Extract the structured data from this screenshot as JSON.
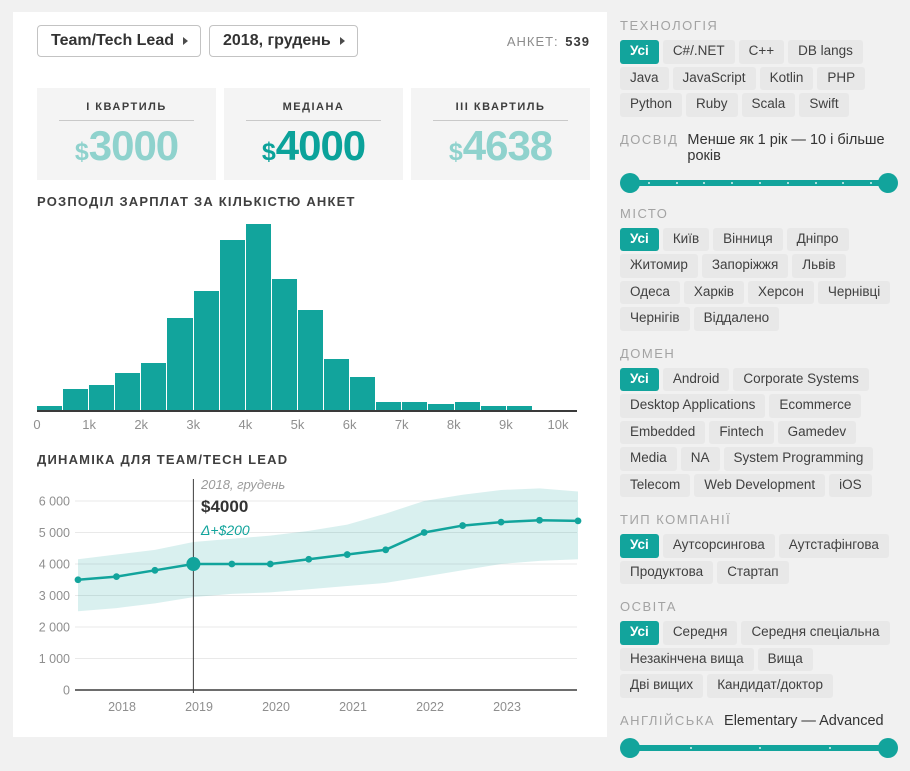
{
  "toolbar": {
    "category_dropdown": "Team/Tech Lead",
    "period_dropdown": "2018, грудень",
    "surveys_label": "АНКЕТ:",
    "surveys_count": "539"
  },
  "stats": {
    "currency": "$",
    "items": [
      {
        "label": "І КВАРТИЛЬ",
        "value": "3000"
      },
      {
        "label": "МЕДІАНА",
        "value": "4000"
      },
      {
        "label": "ІІІ КВАРТИЛЬ",
        "value": "4638"
      }
    ]
  },
  "chart_data": [
    {
      "type": "bar",
      "title": "РОЗПОДІЛ ЗАРПЛАТ ЗА КІЛЬКІСТЮ АНКЕТ",
      "x_range": [
        0,
        10000
      ],
      "bin_width": 500,
      "x_tick_labels": [
        "0",
        "1k",
        "2k",
        "3k",
        "4k",
        "5k",
        "6k",
        "7k",
        "8k",
        "9k",
        "10k"
      ],
      "values": [
        2,
        11,
        13,
        19,
        24,
        47,
        61,
        87,
        95,
        67,
        51,
        26,
        17,
        4,
        4,
        3,
        4,
        2,
        2,
        0
      ],
      "grid": false,
      "bar_color": "#12a49c"
    },
    {
      "type": "line",
      "title": "ДИНАМІКА ДЛЯ TEAM/TECH LEAD",
      "x_tick_labels": [
        "2018",
        "2019",
        "2020",
        "2021",
        "2022",
        "2023"
      ],
      "ylim": [
        0,
        6500
      ],
      "y_tick_labels": [
        "0",
        "1 000",
        "2 000",
        "3 000",
        "4 000",
        "5 000",
        "6 000"
      ],
      "grid": true,
      "legend_position": "none",
      "series": [
        {
          "name": "median",
          "values": [
            3500,
            3600,
            3800,
            4000,
            4000,
            4000,
            4150,
            4300,
            4450,
            5000,
            5220,
            5330,
            5390,
            5370
          ]
        }
      ],
      "band_upper": [
        4150,
        4300,
        4450,
        4700,
        4800,
        4900,
        5050,
        5250,
        5600,
        6000,
        6200,
        6350,
        6400,
        6300
      ],
      "band_lower": [
        2500,
        2600,
        2750,
        2950,
        3050,
        3100,
        3200,
        3300,
        3400,
        3600,
        3800,
        4000,
        4100,
        4150
      ],
      "highlight_index": 3,
      "tooltip": {
        "period": "2018, грудень",
        "value": "$4000",
        "delta": "Δ+$200"
      }
    }
  ],
  "sidebar": {
    "sections": [
      {
        "id": "technology",
        "title": "ТЕХНОЛОГІЯ",
        "type": "chips",
        "selected": "Усі",
        "chips": [
          "Усі",
          "C#/.NET",
          "C++",
          "DB langs",
          "Java",
          "JavaScript",
          "Kotlin",
          "PHP",
          "Python",
          "Ruby",
          "Scala",
          "Swift"
        ]
      },
      {
        "id": "experience",
        "title": "ДОСВІД",
        "type": "slider",
        "range_label": "Менше як 1 рік — 10 і більше років",
        "ticks": 9
      },
      {
        "id": "city",
        "title": "МІСТО",
        "type": "chips",
        "selected": "Усі",
        "chips": [
          "Усі",
          "Київ",
          "Вінниця",
          "Дніпро",
          "Житомир",
          "Запоріжжя",
          "Львів",
          "Одеса",
          "Харків",
          "Херсон",
          "Чернівці",
          "Чернігів",
          "Віддалено"
        ]
      },
      {
        "id": "domain",
        "title": "ДОМЕН",
        "type": "chips",
        "selected": "Усі",
        "chips": [
          "Усі",
          "Android",
          "Corporate Systems",
          "Desktop Applications",
          "Ecommerce",
          "Embedded",
          "Fintech",
          "Gamedev",
          "Media",
          "NA",
          "System Programming",
          "Telecom",
          "Web Development",
          "iOS"
        ]
      },
      {
        "id": "company-type",
        "title": "ТИП КОМПАНІЇ",
        "type": "chips",
        "selected": "Усі",
        "chips": [
          "Усі",
          "Аутсорсингова",
          "Аутстафінгова",
          "Продуктова",
          "Стартап"
        ]
      },
      {
        "id": "education",
        "title": "ОСВІТА",
        "type": "chips",
        "selected": "Усі",
        "chips": [
          "Усі",
          "Середня",
          "Середня спеціальна",
          "Незакінчена вища",
          "Вища",
          "Дві вищих",
          "Кандидат/доктор"
        ]
      },
      {
        "id": "english",
        "title": "АНГЛІЙСЬКА",
        "type": "slider",
        "range_label": "Elementary — Advanced",
        "ticks": 3
      }
    ]
  },
  "colors": {
    "teal": "#12a49c",
    "teal_light": "#8fd2cd",
    "grid": "#e9e9e9",
    "axis": "#3d3d3d",
    "label": "#8f8f8f"
  }
}
